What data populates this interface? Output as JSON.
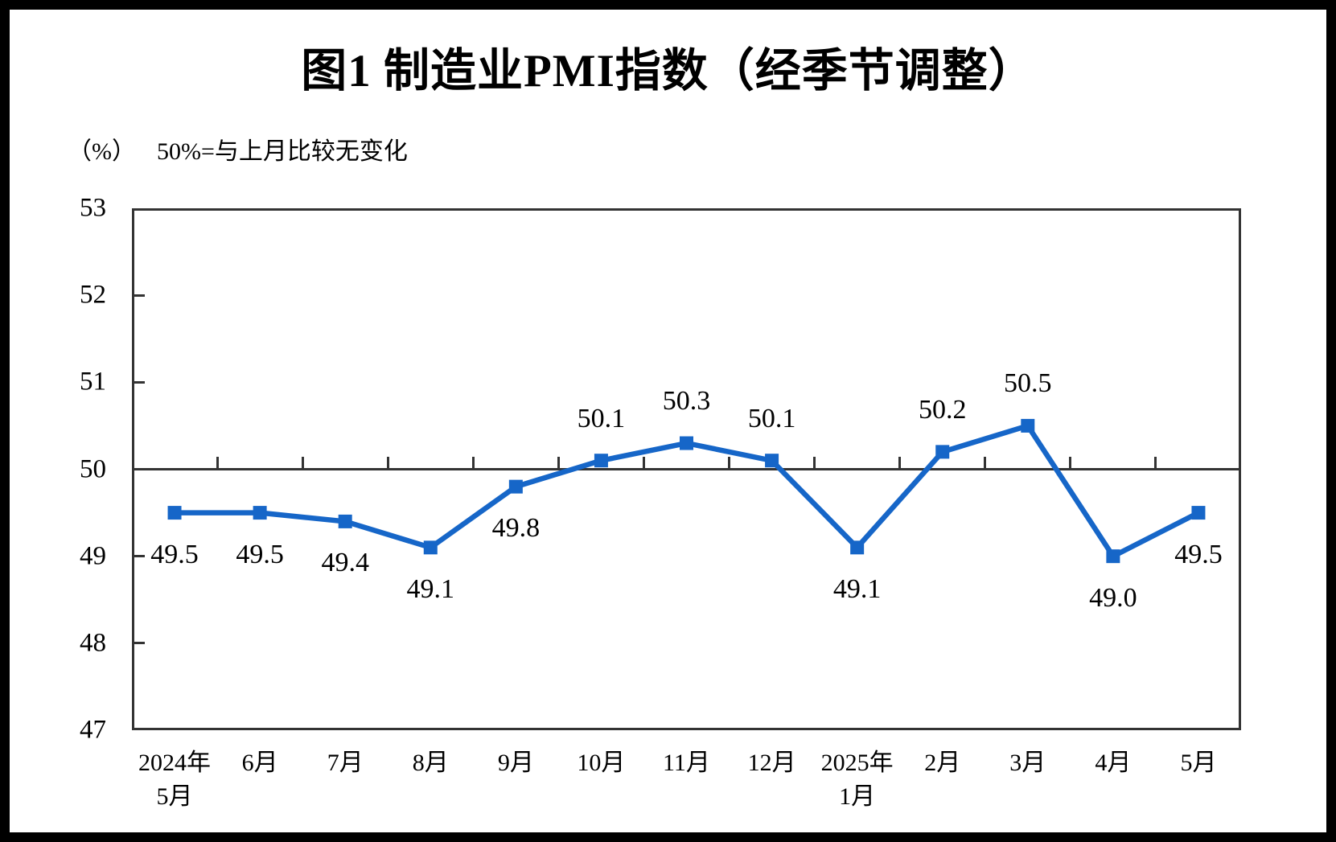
{
  "title": "图1  制造业PMI指数（经季节调整）",
  "subtitle": {
    "unit_label": "（%）",
    "note": "50%=与上月比较无变化"
  },
  "chart_data": {
    "type": "line",
    "title": "图1 制造业PMI指数（经季节调整）",
    "ylabel": "（%）",
    "annotation": "50%=与上月比较无变化",
    "categories": [
      "2024年5月",
      "6月",
      "7月",
      "8月",
      "9月",
      "10月",
      "11月",
      "12月",
      "2025年1月",
      "2月",
      "3月",
      "4月",
      "5月"
    ],
    "category_lines": [
      [
        "2024年",
        "5月"
      ],
      [
        "6月"
      ],
      [
        "7月"
      ],
      [
        "8月"
      ],
      [
        "9月"
      ],
      [
        "10月"
      ],
      [
        "11月"
      ],
      [
        "12月"
      ],
      [
        "2025年",
        "1月"
      ],
      [
        "2月"
      ],
      [
        "3月"
      ],
      [
        "4月"
      ],
      [
        "5月"
      ]
    ],
    "series": [
      {
        "name": "制造业PMI",
        "values": [
          49.5,
          49.5,
          49.4,
          49.1,
          49.8,
          50.1,
          50.3,
          50.1,
          49.1,
          50.2,
          50.5,
          49.0,
          49.5
        ]
      }
    ],
    "data_labels": [
      "49.5",
      "49.5",
      "49.4",
      "49.1",
      "49.8",
      "50.1",
      "50.3",
      "50.1",
      "49.1",
      "50.2",
      "50.5",
      "49.0",
      "49.5"
    ],
    "ylim": [
      47,
      53
    ],
    "yticks": [
      47,
      48,
      49,
      50,
      51,
      52,
      53
    ],
    "reference_line": 50,
    "grid": false,
    "legend": "none",
    "marker": "square",
    "colors": {
      "line": "#1666C8",
      "marker": "#1666C8",
      "axis": "#333333",
      "text": "#000000",
      "frame": "#000000",
      "background": "#FFFFFF"
    }
  }
}
